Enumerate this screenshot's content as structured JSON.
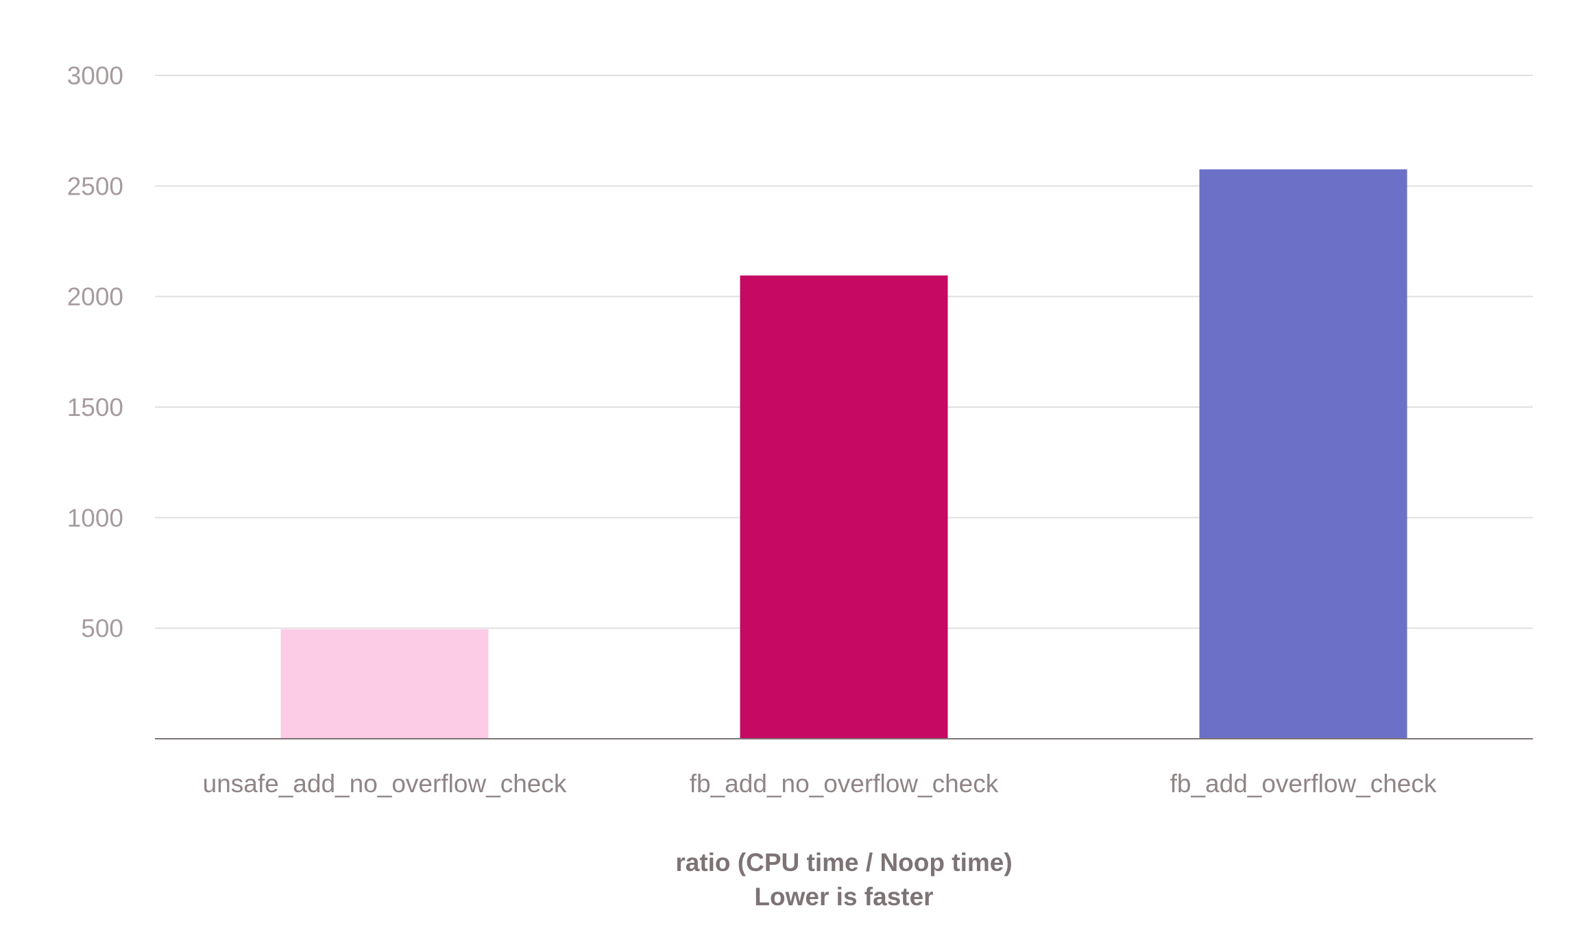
{
  "chart_data": {
    "type": "bar",
    "categories": [
      "unsafe_add_no_overflow_check",
      "fb_add_no_overflow_check",
      "fb_add_overflow_check"
    ],
    "values": [
      495,
      2095,
      2575
    ],
    "colors": [
      "#fcccE6",
      "#c60963",
      "#6c71c7"
    ],
    "xlabel": "ratio (CPU time / Noop time)",
    "xlabel_note": "Lower is faster",
    "ylim": [
      0,
      3000
    ],
    "yticks": [
      500,
      1000,
      1500,
      2000,
      2500,
      3000
    ],
    "ytick_labels": [
      "500",
      "1000",
      "1500",
      "2000",
      "2500",
      "3000"
    ],
    "grid": true,
    "gridline_color": "#e2dfe0",
    "axis_color": "#7d7375"
  }
}
